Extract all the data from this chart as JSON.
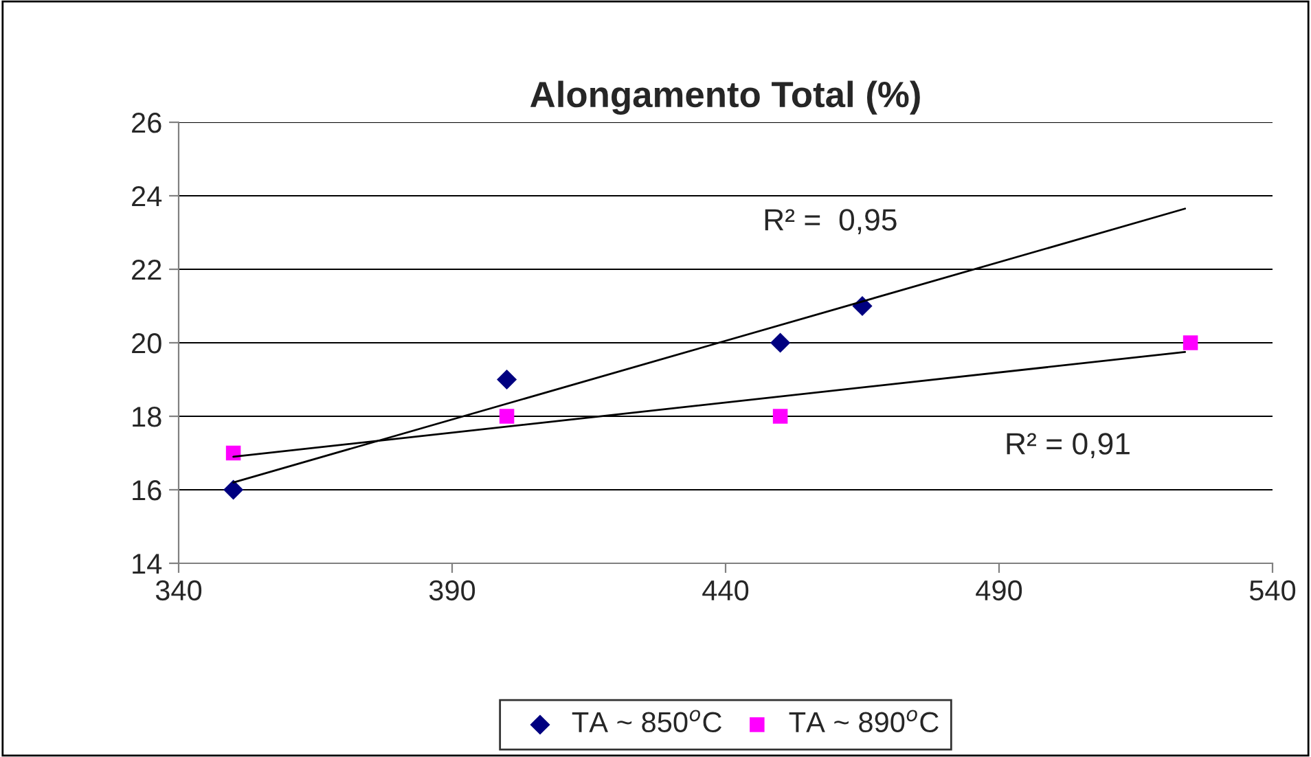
{
  "chart_data": {
    "type": "scatter",
    "title": "Alongamento Total (%)",
    "xlim": [
      340,
      540
    ],
    "xticks": [
      340,
      390,
      440,
      490,
      540
    ],
    "ylim": [
      14,
      26
    ],
    "yticks": [
      14,
      16,
      18,
      20,
      22,
      24,
      26
    ],
    "grid": "y",
    "legend": "bottom",
    "series": [
      {
        "name": "TA ~ 850$^{o}$C",
        "color": "#000080",
        "marker": "diamond",
        "x": [
          350,
          400,
          450,
          465
        ],
        "values": [
          16,
          19,
          20,
          21
        ]
      },
      {
        "name": "TA ~ 890$^{o}$C",
        "color": "#ff00ff",
        "marker": "square",
        "x": [
          350,
          400,
          450,
          525
        ],
        "values": [
          17,
          18,
          18,
          20
        ]
      },
      {
        "type": "line",
        "color": "#000000",
        "marker": "none",
        "line_style": "solid",
        "x": [
          350,
          524
        ],
        "values": [
          16.2,
          23.65
        ]
      },
      {
        "type": "line",
        "color": "#000000",
        "marker": "none",
        "line_style": "solid",
        "x": [
          350,
          524
        ],
        "values": [
          16.9,
          19.75
        ]
      }
    ],
    "annotations": [
      "R² =  0,95",
      "R² = 0,91"
    ]
  }
}
